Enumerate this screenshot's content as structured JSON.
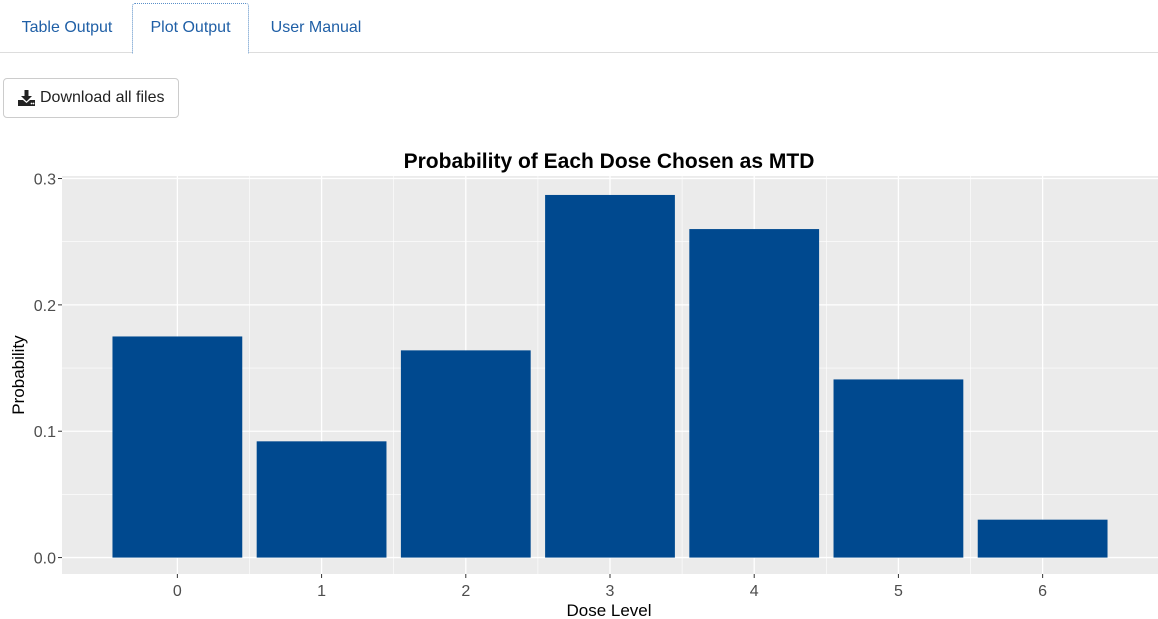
{
  "tabs": [
    {
      "label": "Table Output"
    },
    {
      "label": "Plot Output"
    },
    {
      "label": "User Manual"
    }
  ],
  "active_tab": "Plot Output",
  "download": {
    "label": "Download all files",
    "icon": "download-icon"
  },
  "colors": {
    "bar": "#00498f",
    "panel": "#ebebeb",
    "grid": "#ffffff",
    "link": "#1f5fa6"
  },
  "chart_data": {
    "type": "bar",
    "title": "Probability of Each Dose Chosen as MTD",
    "xlabel": "Dose Level",
    "ylabel": "Probability",
    "categories": [
      "0",
      "1",
      "2",
      "3",
      "4",
      "5",
      "6"
    ],
    "values": [
      0.175,
      0.092,
      0.164,
      0.287,
      0.26,
      0.141,
      0.03
    ],
    "ylim": [
      -0.013,
      0.302
    ],
    "yticks": [
      "0.0",
      "0.1",
      "0.2",
      "0.3"
    ],
    "grid": true
  }
}
